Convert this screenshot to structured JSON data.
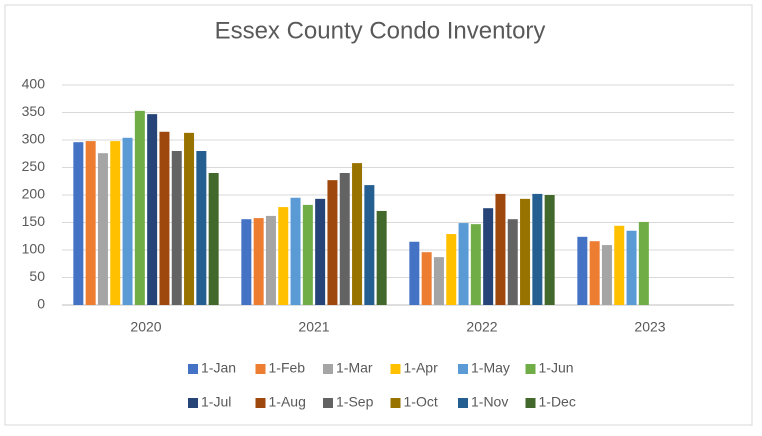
{
  "chart_data": {
    "type": "bar",
    "title": "Essex County Condo Inventory",
    "categories": [
      "2020",
      "2021",
      "2022",
      "2023"
    ],
    "series": [
      {
        "name": "1-Jan",
        "color": "#4472c4",
        "values": [
          296,
          156,
          115,
          124
        ]
      },
      {
        "name": "1-Feb",
        "color": "#ed7d31",
        "values": [
          298,
          158,
          96,
          116
        ]
      },
      {
        "name": "1-Mar",
        "color": "#a5a5a5",
        "values": [
          276,
          162,
          87,
          109
        ]
      },
      {
        "name": "1-Apr",
        "color": "#ffc000",
        "values": [
          298,
          178,
          129,
          144
        ]
      },
      {
        "name": "1-May",
        "color": "#5b9bd5",
        "values": [
          304,
          195,
          149,
          135
        ]
      },
      {
        "name": "1-Jun",
        "color": "#70ad47",
        "values": [
          353,
          182,
          147,
          151
        ]
      },
      {
        "name": "1-Jul",
        "color": "#264478",
        "values": [
          347,
          193,
          176,
          null
        ]
      },
      {
        "name": "1-Aug",
        "color": "#9e480e",
        "values": [
          315,
          227,
          202,
          null
        ]
      },
      {
        "name": "1-Sep",
        "color": "#636363",
        "values": [
          280,
          240,
          156,
          null
        ]
      },
      {
        "name": "1-Oct",
        "color": "#997300",
        "values": [
          313,
          258,
          193,
          null
        ]
      },
      {
        "name": "1-Nov",
        "color": "#255e91",
        "values": [
          280,
          218,
          202,
          null
        ]
      },
      {
        "name": "1-Dec",
        "color": "#43682b",
        "values": [
          240,
          171,
          200,
          null
        ]
      }
    ],
    "ylim": [
      0,
      400
    ],
    "yticks": [
      0,
      50,
      100,
      150,
      200,
      250,
      300,
      350,
      400
    ],
    "grid": true,
    "legend": "bottom"
  }
}
